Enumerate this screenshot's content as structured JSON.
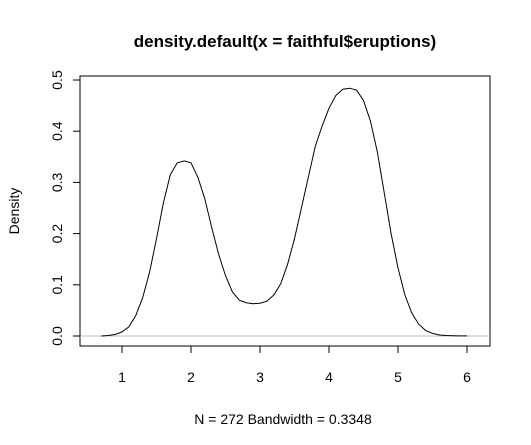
{
  "chart_data": {
    "type": "line",
    "title": "density.default(x = faithful$eruptions)",
    "xlabel": "N = 272   Bandwidth = 0.3348",
    "ylabel": "Density",
    "xlim": [
      0.6,
      6.2
    ],
    "ylim": [
      0,
      0.5
    ],
    "xticks": [
      1,
      2,
      3,
      4,
      5,
      6
    ],
    "yticks": [
      0.0,
      0.1,
      0.2,
      0.3,
      0.4,
      0.5
    ],
    "xtick_labels": [
      "1",
      "2",
      "3",
      "4",
      "5",
      "6"
    ],
    "ytick_labels": [
      "0.0",
      "0.1",
      "0.2",
      "0.3",
      "0.4",
      "0.5"
    ],
    "baseline": 0,
    "grid": false,
    "legend": "none",
    "series": [
      {
        "x": [
          0.7,
          0.8,
          0.9,
          1.0,
          1.1,
          1.2,
          1.3,
          1.4,
          1.5,
          1.6,
          1.7,
          1.8,
          1.9,
          2.0,
          2.1,
          2.2,
          2.3,
          2.4,
          2.5,
          2.6,
          2.7,
          2.8,
          2.9,
          3.0,
          3.1,
          3.2,
          3.3,
          3.4,
          3.5,
          3.6,
          3.7,
          3.8,
          3.9,
          4.0,
          4.1,
          4.2,
          4.3,
          4.4,
          4.5,
          4.6,
          4.7,
          4.8,
          4.9,
          5.0,
          5.1,
          5.2,
          5.3,
          5.4,
          5.5,
          5.6,
          5.7,
          5.8,
          5.9,
          6.0
        ],
        "y": [
          0.0,
          0.001,
          0.003,
          0.008,
          0.018,
          0.04,
          0.075,
          0.125,
          0.19,
          0.26,
          0.315,
          0.338,
          0.342,
          0.338,
          0.31,
          0.268,
          0.212,
          0.16,
          0.118,
          0.086,
          0.07,
          0.065,
          0.063,
          0.064,
          0.068,
          0.08,
          0.102,
          0.14,
          0.19,
          0.25,
          0.31,
          0.37,
          0.41,
          0.445,
          0.47,
          0.482,
          0.484,
          0.48,
          0.46,
          0.42,
          0.36,
          0.28,
          0.2,
          0.133,
          0.08,
          0.045,
          0.023,
          0.011,
          0.005,
          0.002,
          0.001,
          0.0005,
          0.0002,
          0.0001
        ],
        "color": "#000000"
      }
    ]
  }
}
